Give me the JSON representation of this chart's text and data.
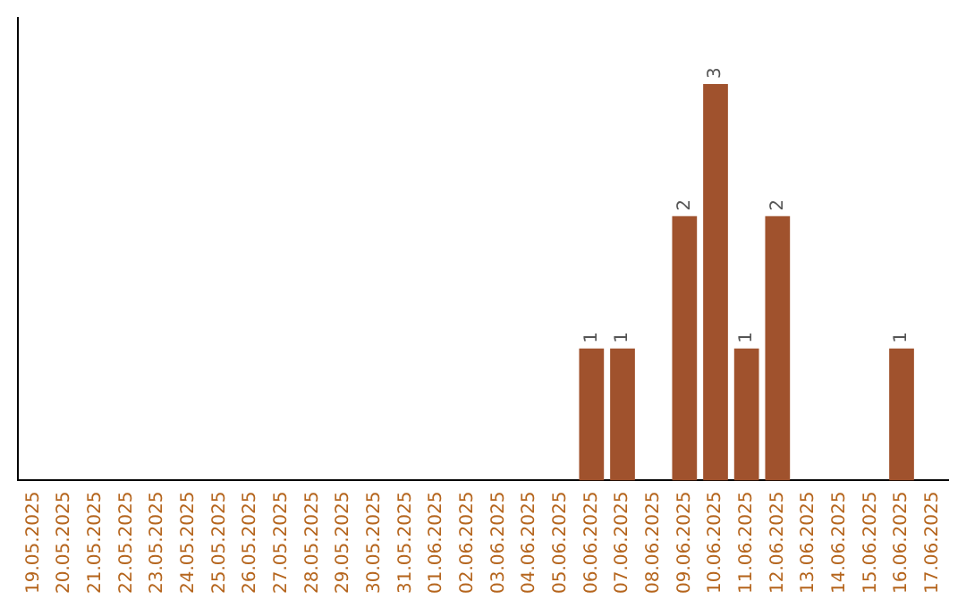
{
  "chart_data": {
    "type": "bar",
    "categories": [
      "19.05.2025",
      "20.05.2025",
      "21.05.2025",
      "22.05.2025",
      "23.05.2025",
      "24.05.2025",
      "25.05.2025",
      "26.05.2025",
      "27.05.2025",
      "28.05.2025",
      "29.05.2025",
      "30.05.2025",
      "31.05.2025",
      "01.06.2025",
      "02.06.2025",
      "03.06.2025",
      "04.06.2025",
      "05.06.2025",
      "06.06.2025",
      "07.06.2025",
      "08.06.2025",
      "09.06.2025",
      "10.06.2025",
      "11.06.2025",
      "12.06.2025",
      "13.06.2025",
      "14.06.2025",
      "15.06.2025",
      "16.06.2025",
      "17.06.2025"
    ],
    "values": [
      null,
      null,
      null,
      null,
      null,
      null,
      null,
      null,
      null,
      null,
      null,
      null,
      null,
      null,
      null,
      null,
      null,
      null,
      1,
      1,
      null,
      2,
      3,
      1,
      2,
      null,
      null,
      null,
      1,
      null
    ],
    "value_labels": [
      null,
      null,
      null,
      null,
      null,
      null,
      null,
      null,
      null,
      null,
      null,
      null,
      null,
      null,
      null,
      null,
      null,
      null,
      "1",
      "1",
      null,
      "2",
      "3",
      "1",
      "2",
      null,
      null,
      null,
      "1",
      null
    ],
    "color": "#a0522d",
    "tick_labels": "x",
    "grid": false,
    "legend": false
  }
}
